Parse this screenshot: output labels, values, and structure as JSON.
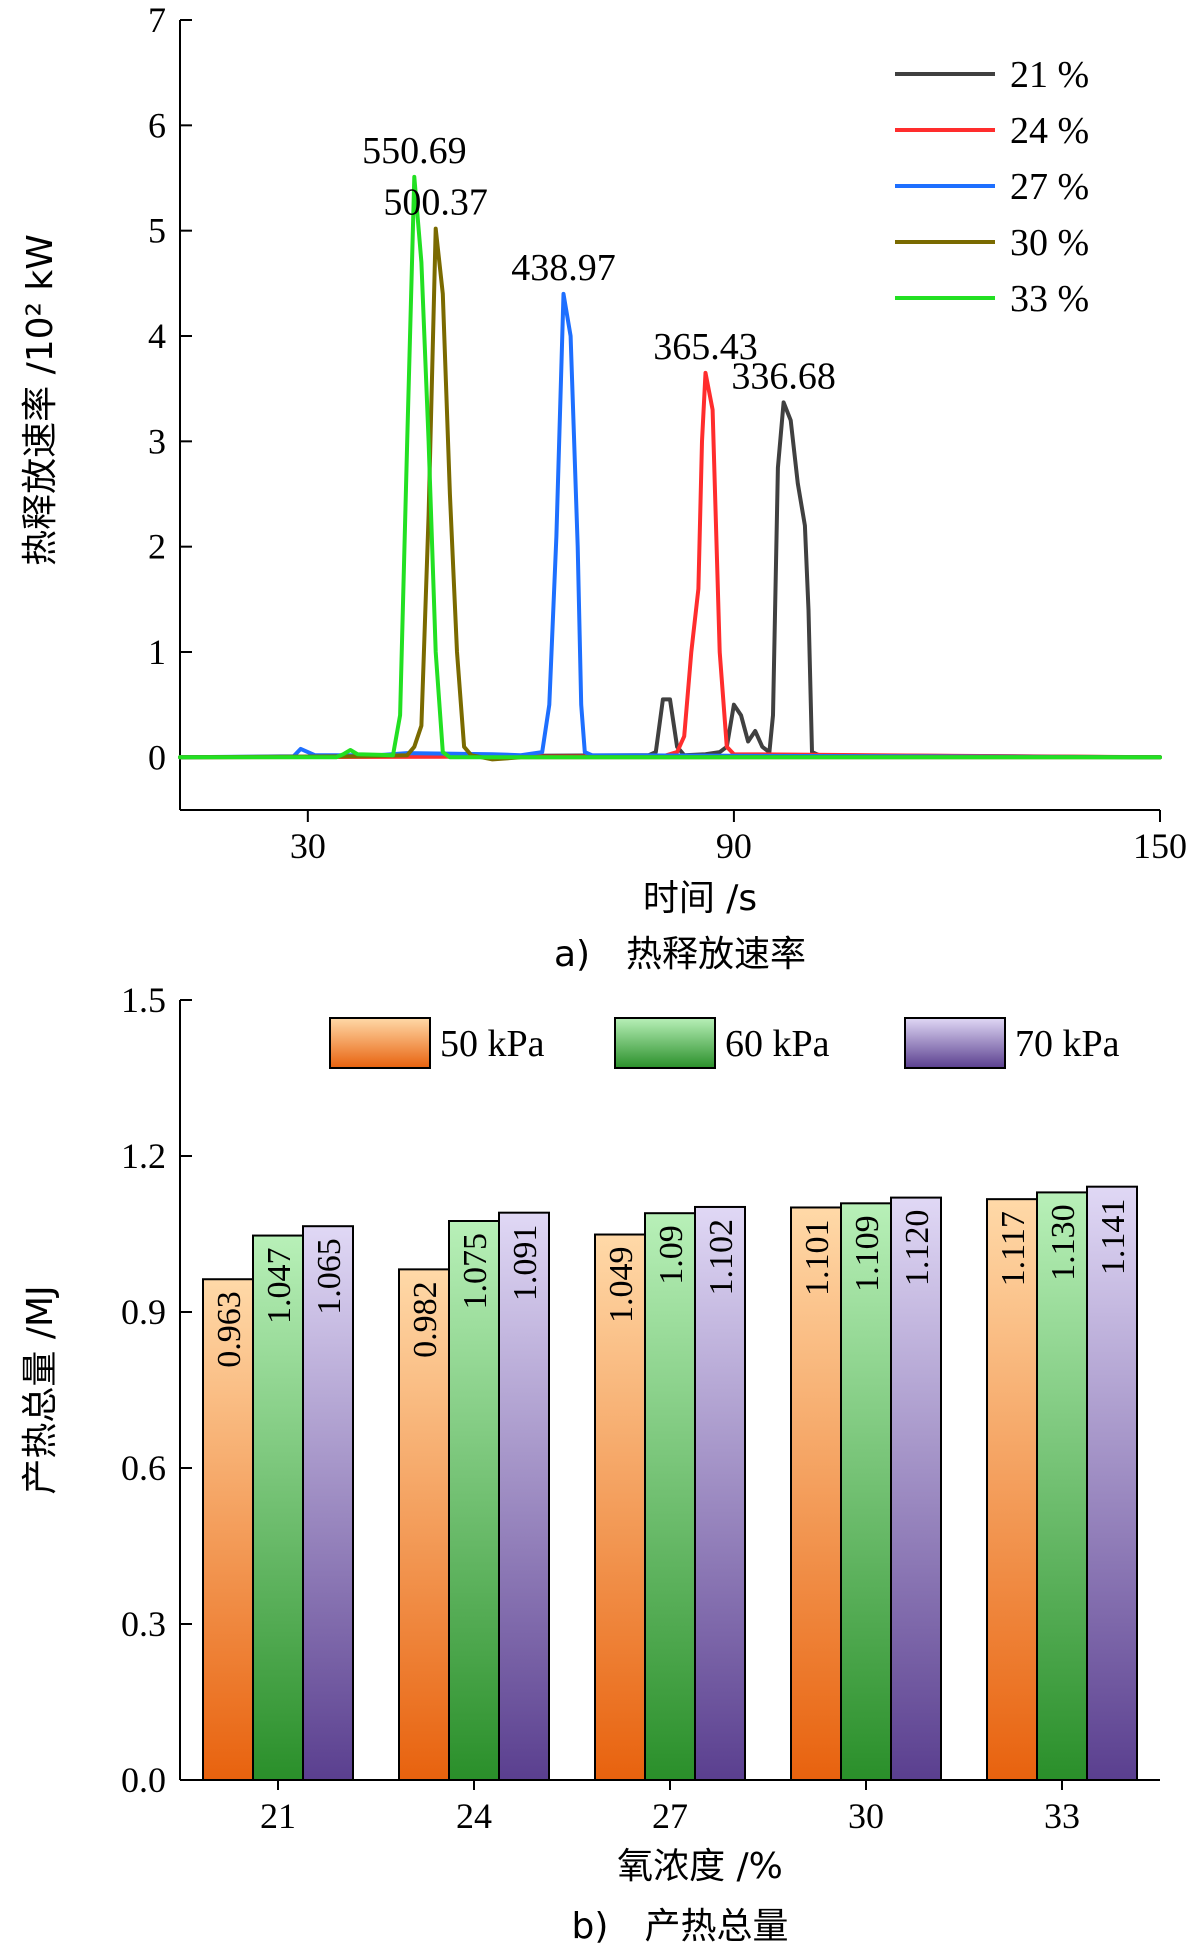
{
  "chart_data": [
    {
      "type": "line",
      "caption": "a)　热释放速率",
      "xlabel": "时间 /s",
      "ylabel": "热释放速率 /10² kW",
      "xlim": [
        12,
        150
      ],
      "ylim": [
        -0.5,
        7
      ],
      "xticks": [
        30,
        90,
        150
      ],
      "yticks": [
        0,
        1,
        2,
        3,
        4,
        5,
        6,
        7
      ],
      "legend_position": "top-right",
      "series": [
        {
          "name": "21 %",
          "color": "#404040",
          "peak_label": "336.68",
          "peak_x": 97,
          "peak_y": 3.37,
          "points": [
            [
              12,
              0
            ],
            [
              78,
              0.02
            ],
            [
              79,
              0.05
            ],
            [
              80,
              0.55
            ],
            [
              81,
              0.55
            ],
            [
              82,
              0.1
            ],
            [
              83,
              0.02
            ],
            [
              86,
              0.03
            ],
            [
              88,
              0.05
            ],
            [
              89,
              0.1
            ],
            [
              90,
              0.5
            ],
            [
              91,
              0.4
            ],
            [
              92,
              0.15
            ],
            [
              93,
              0.25
            ],
            [
              94,
              0.1
            ],
            [
              95,
              0.05
            ],
            [
              95.5,
              0.4
            ],
            [
              96.2,
              2.75
            ],
            [
              97,
              3.37
            ],
            [
              98,
              3.2
            ],
            [
              99,
              2.6
            ],
            [
              100,
              2.2
            ],
            [
              100.5,
              1.4
            ],
            [
              101,
              0.05
            ],
            [
              102,
              0.02
            ],
            [
              150,
              0
            ]
          ]
        },
        {
          "name": "24 %",
          "color": "#ff2d2d",
          "peak_label": "365.43",
          "peak_x": 86,
          "peak_y": 3.65,
          "points": [
            [
              12,
              0
            ],
            [
              80,
              0.01
            ],
            [
              82,
              0.05
            ],
            [
              83,
              0.2
            ],
            [
              84,
              1.0
            ],
            [
              85,
              1.6
            ],
            [
              85.5,
              3.0
            ],
            [
              86,
              3.65
            ],
            [
              87,
              3.3
            ],
            [
              88,
              1.0
            ],
            [
              89,
              0.1
            ],
            [
              90,
              0.03
            ],
            [
              150,
              0
            ]
          ]
        },
        {
          "name": "27 %",
          "color": "#1e6fff",
          "peak_label": "438.97",
          "peak_x": 66,
          "peak_y": 4.4,
          "points": [
            [
              12,
              0
            ],
            [
              28,
              0.01
            ],
            [
              29,
              0.08
            ],
            [
              30,
              0.05
            ],
            [
              31,
              0.02
            ],
            [
              40,
              0.02
            ],
            [
              44,
              0.04
            ],
            [
              56,
              0.03
            ],
            [
              60,
              0.02
            ],
            [
              63,
              0.05
            ],
            [
              64,
              0.5
            ],
            [
              65,
              2.1
            ],
            [
              66,
              4.4
            ],
            [
              67,
              4.0
            ],
            [
              68,
              2.0
            ],
            [
              68.5,
              0.5
            ],
            [
              69,
              0.05
            ],
            [
              70,
              0.02
            ],
            [
              150,
              0
            ]
          ]
        },
        {
          "name": "30 %",
          "color": "#7a6a00",
          "peak_label": "500.37",
          "peak_x": 48,
          "peak_y": 5.02,
          "points": [
            [
              12,
              0
            ],
            [
              38,
              0.01
            ],
            [
              44,
              0.02
            ],
            [
              45,
              0.1
            ],
            [
              46,
              0.3
            ],
            [
              47,
              2.3
            ],
            [
              48,
              5.02
            ],
            [
              49,
              4.4
            ],
            [
              50,
              2.5
            ],
            [
              51,
              1.0
            ],
            [
              52,
              0.1
            ],
            [
              53,
              0.02
            ],
            [
              56,
              -0.02
            ],
            [
              58,
              -0.01
            ],
            [
              60,
              0
            ],
            [
              150,
              0
            ]
          ]
        },
        {
          "name": "33 %",
          "color": "#22e022",
          "peak_label": "550.69",
          "peak_x": 45,
          "peak_y": 5.51,
          "points": [
            [
              12,
              0
            ],
            [
              34,
              0
            ],
            [
              35,
              0.03
            ],
            [
              36,
              0.07
            ],
            [
              37,
              0.03
            ],
            [
              42,
              0.02
            ],
            [
              43,
              0.4
            ],
            [
              44,
              3.0
            ],
            [
              45,
              5.51
            ],
            [
              46,
              4.7
            ],
            [
              47,
              3.0
            ],
            [
              48,
              1.0
            ],
            [
              49,
              0.05
            ],
            [
              50,
              0
            ],
            [
              150,
              0
            ]
          ]
        }
      ]
    },
    {
      "type": "bar",
      "caption": "b)　产热总量",
      "xlabel": "氧浓度 /%",
      "ylabel": "产热总量 /MJ",
      "ylim": [
        0,
        1.5
      ],
      "yticks": [
        "0.0",
        "0.3",
        "0.6",
        "0.9",
        "1.2",
        "1.5"
      ],
      "legend_position": "top",
      "categories": [
        "21",
        "24",
        "27",
        "30",
        "33"
      ],
      "series": [
        {
          "name": "50 kPa",
          "colors": [
            "#ffd9a8",
            "#e8620e"
          ],
          "values": [
            0.963,
            0.982,
            1.049,
            1.101,
            1.117
          ],
          "labels": [
            "0.963",
            "0.982",
            "1.049",
            "1.101",
            "1.117"
          ]
        },
        {
          "name": "60 kPa",
          "colors": [
            "#b8f0b8",
            "#2a8f2a"
          ],
          "values": [
            1.047,
            1.075,
            1.09,
            1.109,
            1.13
          ],
          "labels": [
            "1.047",
            "1.075",
            "1.09",
            "1.109",
            "1.130"
          ]
        },
        {
          "name": "70 kPa",
          "colors": [
            "#e0d8f5",
            "#5a3f8f"
          ],
          "values": [
            1.065,
            1.091,
            1.102,
            1.12,
            1.141
          ],
          "labels": [
            "1.065",
            "1.091",
            "1.102",
            "1.120",
            "1.141"
          ]
        }
      ]
    }
  ]
}
